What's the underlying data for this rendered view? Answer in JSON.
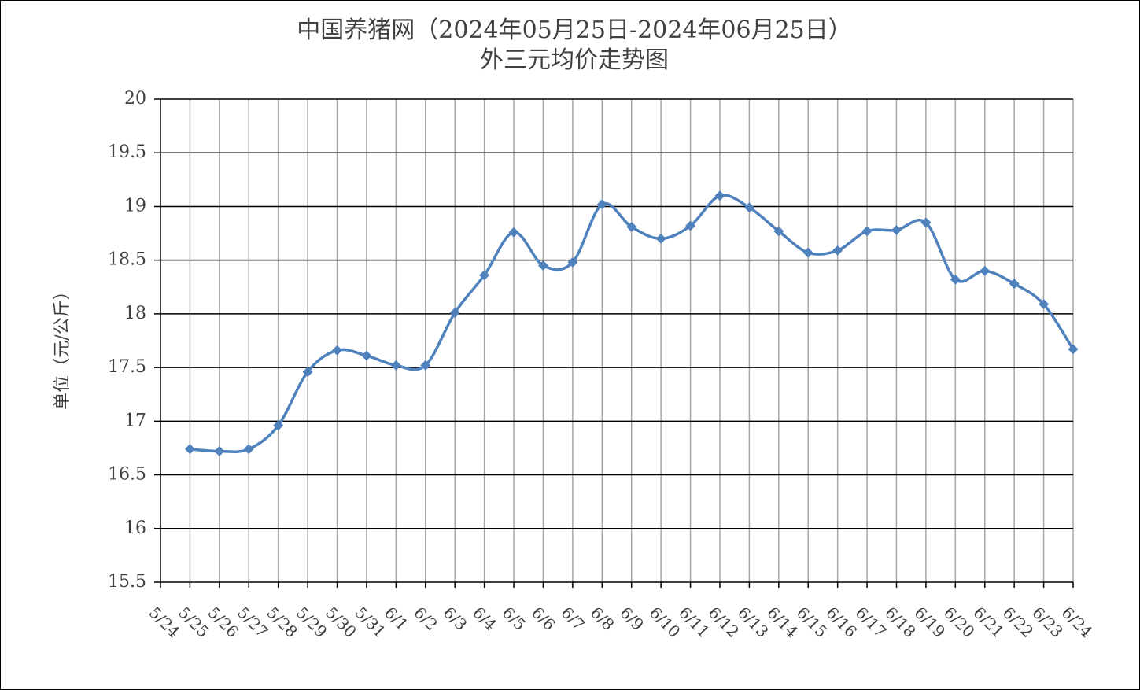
{
  "chart_data": {
    "type": "line",
    "title": "中国养猪网（2024年05月25日-2024年06月25日）",
    "subtitle": "外三元均价走势图",
    "y_label": "单位（元/公斤）",
    "categories": [
      "5/24",
      "5/25",
      "5/26",
      "5/27",
      "5/28",
      "5/29",
      "5/30",
      "5/31",
      "6/1",
      "6/2",
      "6/3",
      "6/4",
      "6/5",
      "6/6",
      "6/7",
      "6/8",
      "6/9",
      "6/10",
      "6/11",
      "6/12",
      "6/13",
      "6/14",
      "6/15",
      "6/16",
      "6/17",
      "6/18",
      "6/19",
      "6/20",
      "6/21",
      "6/22",
      "6/23",
      "6/24"
    ],
    "series": [
      {
        "name": "外三元",
        "color": "#4f81bd",
        "values": [
          null,
          16.74,
          16.72,
          16.74,
          16.96,
          17.46,
          17.66,
          17.61,
          17.52,
          17.52,
          18.01,
          18.36,
          18.76,
          18.45,
          18.48,
          19.02,
          18.81,
          18.7,
          18.82,
          19.1,
          18.99,
          18.77,
          18.57,
          18.59,
          18.77,
          18.78,
          18.85,
          18.32,
          18.4,
          18.28,
          18.09,
          17.67
        ]
      }
    ],
    "ylim": [
      15.5,
      20
    ],
    "yticks": [
      15.5,
      16,
      16.5,
      17,
      17.5,
      18,
      18.5,
      19,
      19.5,
      20
    ],
    "grid": true,
    "smooth": true,
    "marker": "diamond"
  }
}
